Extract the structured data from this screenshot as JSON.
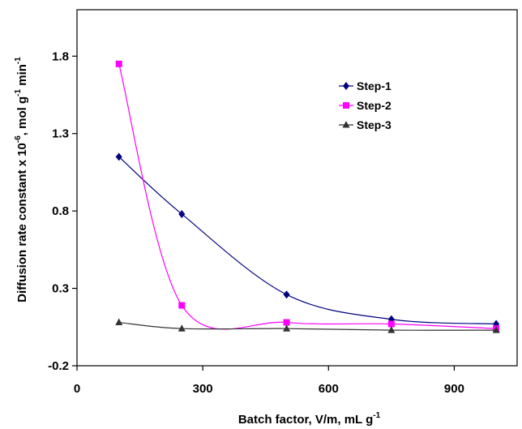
{
  "chart_data": {
    "type": "line",
    "title": "",
    "xlabel": {
      "text": "Batch factor, V/m, mL g",
      "superscript": "-1"
    },
    "ylabel": {
      "parts": [
        {
          "text": "Diffusion rate constant x 10",
          "sup": false
        },
        {
          "text": "-6",
          "sup": true
        },
        {
          "text": ", mol g",
          "sup": false
        },
        {
          "text": "-1",
          "sup": true
        },
        {
          "text": " min",
          "sup": false
        },
        {
          "text": "-1",
          "sup": true
        }
      ]
    },
    "xlim": [
      0,
      1050
    ],
    "ylim": [
      -0.2,
      2.1
    ],
    "x_ticks": [
      0,
      300,
      600,
      900
    ],
    "x_tick_labels": [
      "0",
      "300",
      "600",
      "900"
    ],
    "y_ticks": [
      -0.2,
      0.3,
      0.8,
      1.3,
      1.8
    ],
    "y_tick_labels": [
      "-0.2",
      "0.3",
      "0.8",
      "1.3",
      "1.8"
    ],
    "grid": false,
    "legend_position": "top-right",
    "series": [
      {
        "name": "Step-1",
        "color": "#000080",
        "marker": "diamond",
        "x": [
          100,
          250,
          500,
          750,
          1000
        ],
        "y": [
          1.15,
          0.78,
          0.26,
          0.1,
          0.07
        ]
      },
      {
        "name": "Step-2",
        "color": "#ff00ff",
        "marker": "square",
        "x": [
          100,
          250,
          500,
          750,
          1000
        ],
        "y": [
          1.75,
          0.19,
          0.08,
          0.07,
          0.04
        ]
      },
      {
        "name": "Step-3",
        "color": "#333333",
        "marker": "triangle",
        "x": [
          100,
          250,
          500,
          750,
          1000
        ],
        "y": [
          0.08,
          0.04,
          0.04,
          0.03,
          0.03
        ]
      }
    ]
  }
}
